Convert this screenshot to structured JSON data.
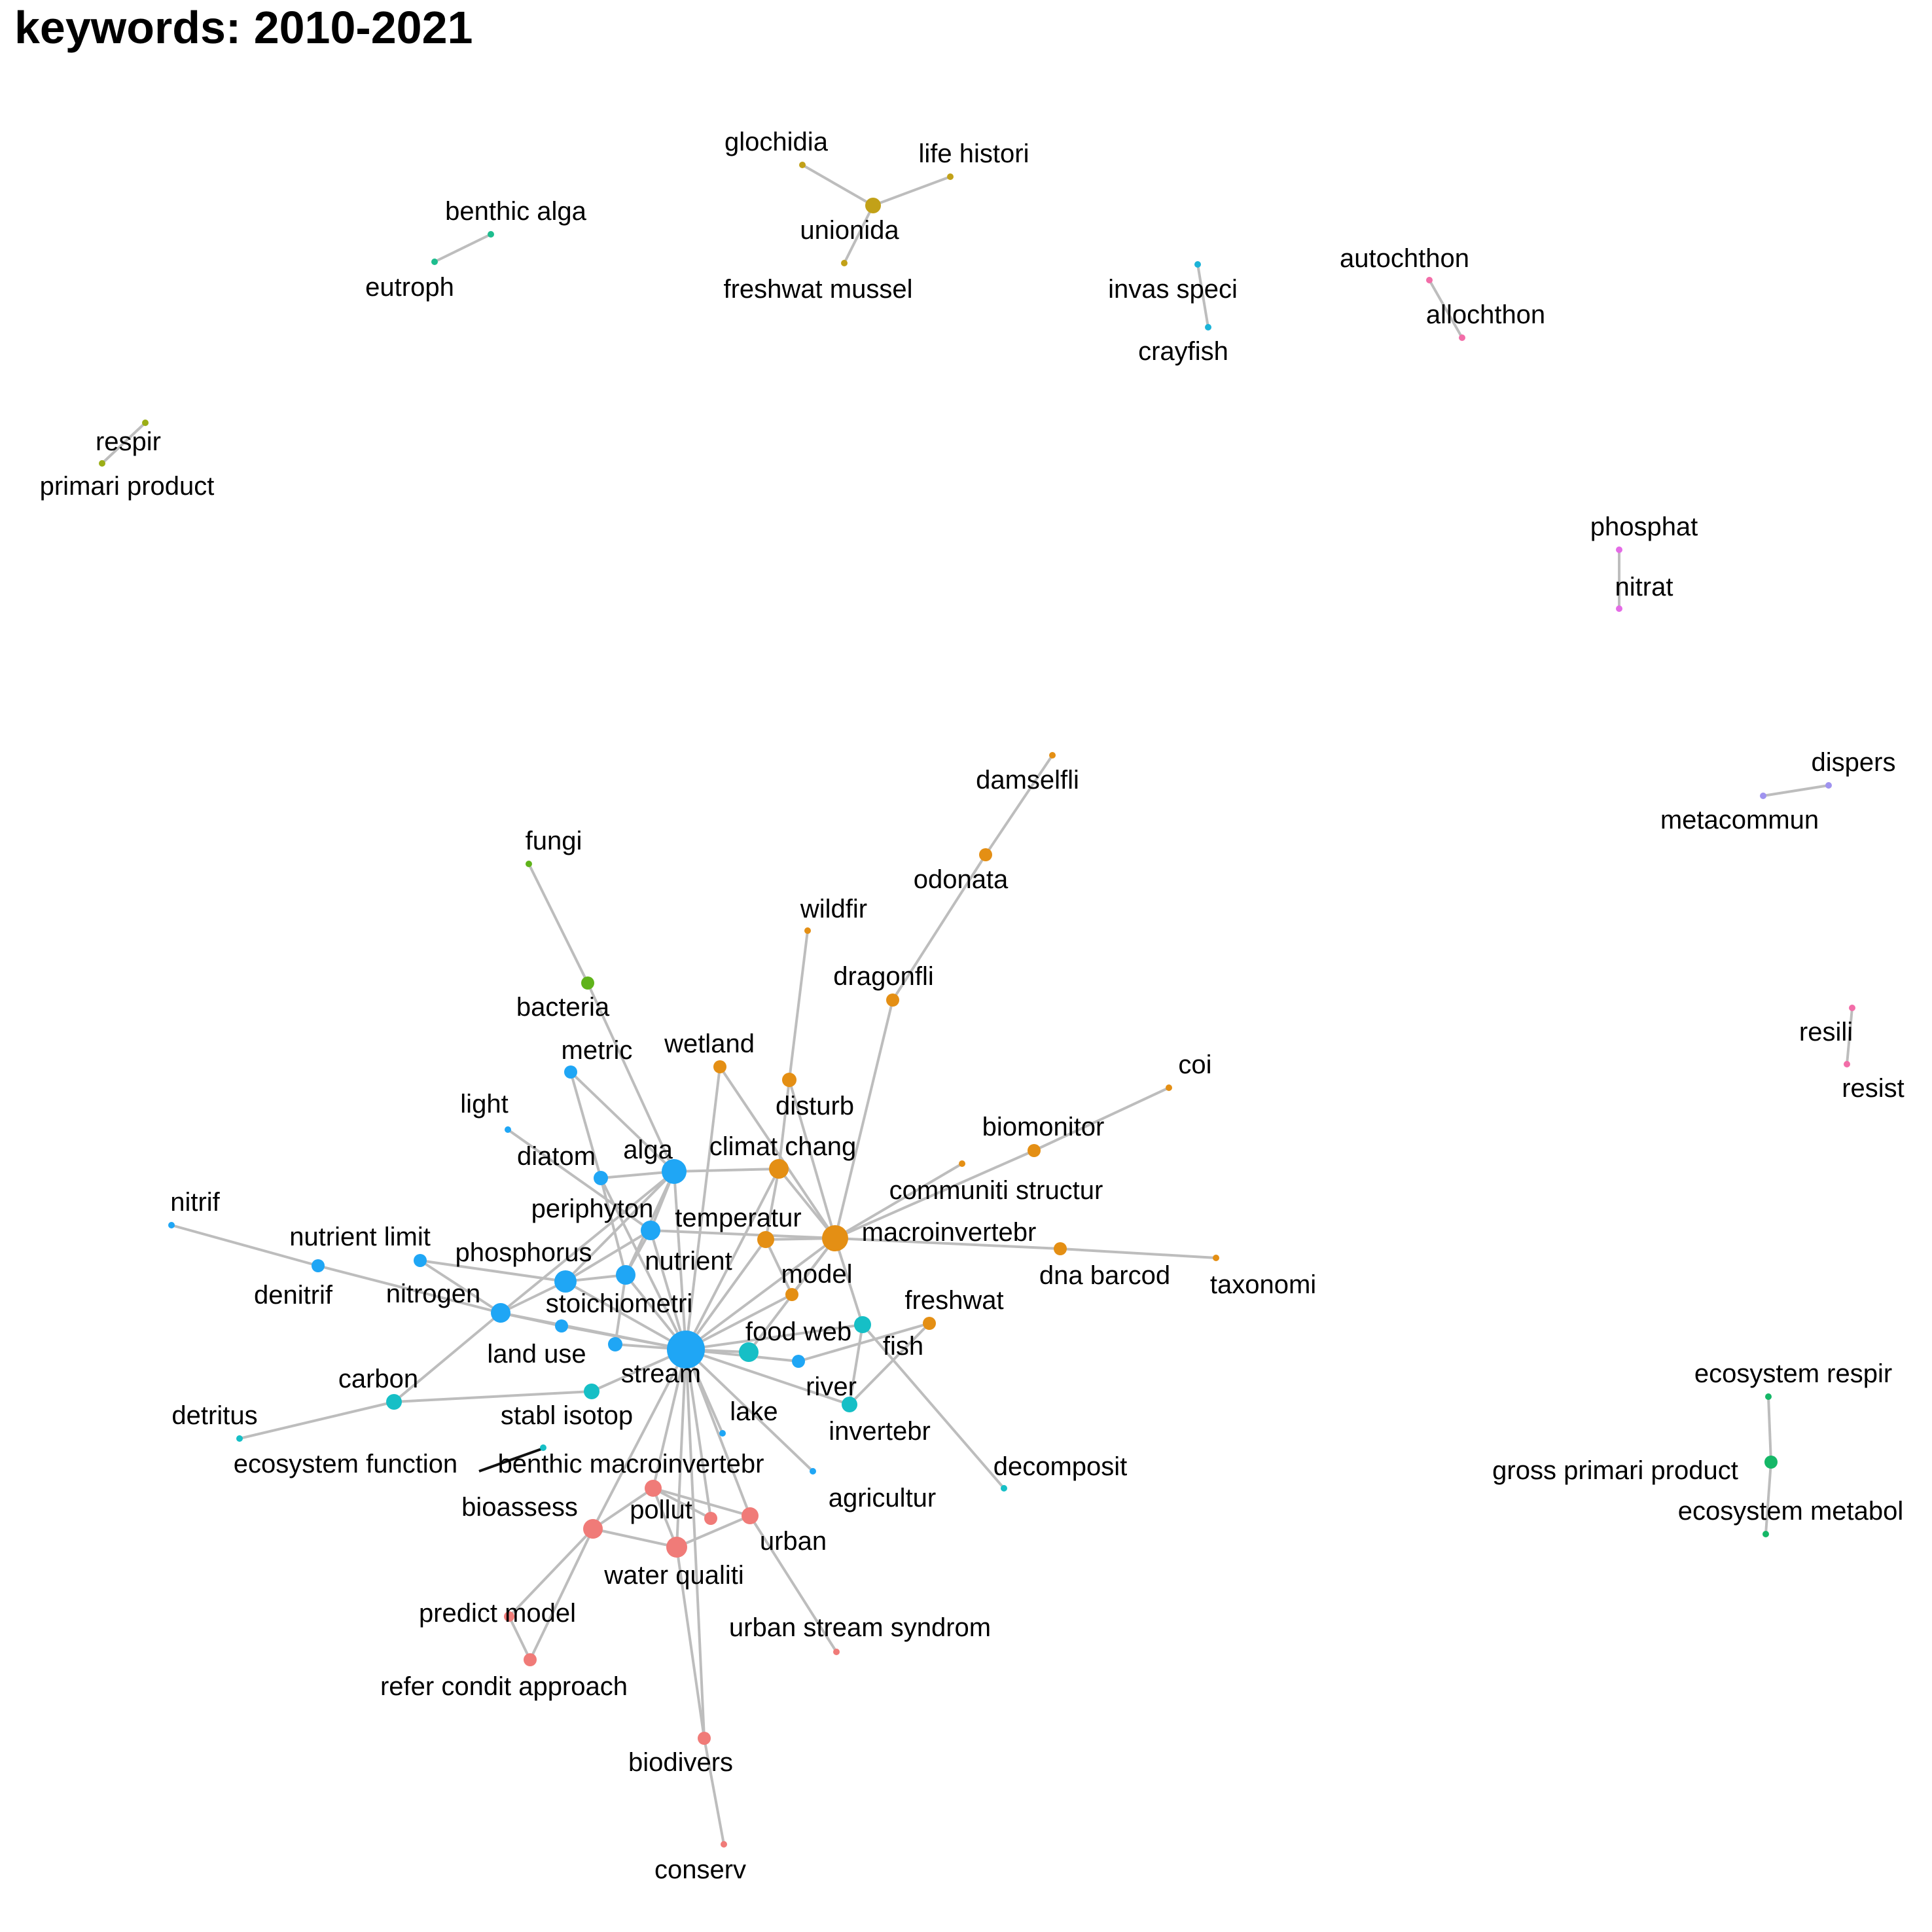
{
  "title": "keywords: 2010-2021",
  "colors": {
    "blue": "#1fa6f5",
    "orange": "#e48f14",
    "teal": "#16bfc6",
    "salmon": "#f07b78",
    "gold": "#c2a118",
    "green": "#5fb31a",
    "seagreen": "#1dbd8e",
    "olive": "#9bae16",
    "pink": "#f26da8",
    "magenta": "#e46be6",
    "lavender": "#9f93ef",
    "emerald": "#15b767",
    "cyan": "#1bb3d8"
  },
  "nodes": [
    {
      "id": "stream",
      "label": "stream",
      "color": "blue",
      "size": 29
    },
    {
      "id": "alga",
      "label": "alga",
      "color": "blue",
      "size": 19
    },
    {
      "id": "periphyton",
      "label": "periphyton",
      "color": "blue",
      "size": 15
    },
    {
      "id": "phosphorus",
      "label": "phosphorus",
      "color": "blue",
      "size": 17
    },
    {
      "id": "nutrient",
      "label": "nutrient",
      "color": "blue",
      "size": 15
    },
    {
      "id": "nitrogen",
      "label": "nitrogen",
      "color": "blue",
      "size": 15
    },
    {
      "id": "stoichiometri",
      "label": "stoichiometri",
      "color": "blue",
      "size": 11
    },
    {
      "id": "diatom",
      "label": "diatom",
      "color": "blue",
      "size": 11
    },
    {
      "id": "metric",
      "label": "metric",
      "color": "blue",
      "size": 10
    },
    {
      "id": "light",
      "label": "light",
      "color": "blue",
      "size": 5
    },
    {
      "id": "nutrient_limit",
      "label": "nutrient limit",
      "color": "blue",
      "size": 10
    },
    {
      "id": "denitrif",
      "label": "denitrif",
      "color": "blue",
      "size": 10
    },
    {
      "id": "nitrif",
      "label": "nitrif",
      "color": "blue",
      "size": 5
    },
    {
      "id": "land_use",
      "label": "land use",
      "color": "blue",
      "size": 10
    },
    {
      "id": "fish",
      "label": "fish",
      "color": "blue",
      "size": 10
    },
    {
      "id": "lake",
      "label": "lake",
      "color": "blue",
      "size": 5
    },
    {
      "id": "agricultur",
      "label": "agricultur",
      "color": "blue",
      "size": 5
    },
    {
      "id": "macroinvertebr",
      "label": "macroinvertebr",
      "color": "orange",
      "size": 20
    },
    {
      "id": "climat_chang",
      "label": "climat chang",
      "color": "orange",
      "size": 15
    },
    {
      "id": "temperatur",
      "label": "temperatur",
      "color": "orange",
      "size": 13
    },
    {
      "id": "disturb",
      "label": "disturb",
      "color": "orange",
      "size": 11
    },
    {
      "id": "wetland",
      "label": "wetland",
      "color": "orange",
      "size": 10
    },
    {
      "id": "wildfir",
      "label": "wildfir",
      "color": "orange",
      "size": 5
    },
    {
      "id": "dragonfli",
      "label": "dragonfli",
      "color": "orange",
      "size": 10
    },
    {
      "id": "odonata",
      "label": "odonata",
      "color": "orange",
      "size": 10
    },
    {
      "id": "damselfli",
      "label": "damselfli",
      "color": "orange",
      "size": 5
    },
    {
      "id": "biomonitor",
      "label": "biomonitor",
      "color": "orange",
      "size": 10
    },
    {
      "id": "coi",
      "label": "coi",
      "color": "orange",
      "size": 5
    },
    {
      "id": "communiti_structur",
      "label": "communiti structur",
      "color": "orange",
      "size": 5
    },
    {
      "id": "dna_barcod",
      "label": "dna barcod",
      "color": "orange",
      "size": 10
    },
    {
      "id": "taxonomi",
      "label": "taxonomi",
      "color": "orange",
      "size": 5
    },
    {
      "id": "model",
      "label": "model",
      "color": "orange",
      "size": 10
    },
    {
      "id": "freshwat",
      "label": "freshwat",
      "color": "orange",
      "size": 10
    },
    {
      "id": "food_web",
      "label": "food web",
      "color": "teal",
      "size": 15
    },
    {
      "id": "river",
      "label": "river",
      "color": "teal",
      "size": 12
    },
    {
      "id": "invertebr",
      "label": "invertebr",
      "color": "teal",
      "size": 13
    },
    {
      "id": "stabl_isotop",
      "label": "stabl isotop",
      "color": "teal",
      "size": 12
    },
    {
      "id": "carbon",
      "label": "carbon",
      "color": "teal",
      "size": 12
    },
    {
      "id": "detritus",
      "label": "detritus",
      "color": "teal",
      "size": 5
    },
    {
      "id": "ecosystem_function",
      "label": "ecosystem function",
      "color": "teal",
      "size": 5
    },
    {
      "id": "decomposit",
      "label": "decomposit",
      "color": "teal",
      "size": 5
    },
    {
      "id": "benthic_macroinvertebr",
      "label": "benthic macroinvertebr",
      "color": "salmon",
      "size": 13
    },
    {
      "id": "bioassess",
      "label": "bioassess",
      "color": "salmon",
      "size": 15
    },
    {
      "id": "pollut",
      "label": "pollut",
      "color": "salmon",
      "size": 10
    },
    {
      "id": "urban",
      "label": "urban",
      "color": "salmon",
      "size": 13
    },
    {
      "id": "water_qualiti",
      "label": "water qualiti",
      "color": "salmon",
      "size": 16
    },
    {
      "id": "predict_model",
      "label": "predict model",
      "color": "salmon",
      "size": 8
    },
    {
      "id": "refer_condit_approach",
      "label": "refer condit approach",
      "color": "salmon",
      "size": 10
    },
    {
      "id": "urban_stream_syndrom",
      "label": "urban stream syndrom",
      "color": "salmon",
      "size": 5
    },
    {
      "id": "biodivers",
      "label": "biodivers",
      "color": "salmon",
      "size": 10
    },
    {
      "id": "conserv",
      "label": "conserv",
      "color": "salmon",
      "size": 5
    },
    {
      "id": "bacteria",
      "label": "bacteria",
      "color": "green",
      "size": 10
    },
    {
      "id": "fungi",
      "label": "fungi",
      "color": "green",
      "size": 5
    },
    {
      "id": "unionida",
      "label": "unionida",
      "color": "gold",
      "size": 12
    },
    {
      "id": "glochidia",
      "label": "glochidia",
      "color": "gold",
      "size": 5
    },
    {
      "id": "life_histori",
      "label": "life histori",
      "color": "gold",
      "size": 5
    },
    {
      "id": "freshwat_mussel",
      "label": "freshwat mussel",
      "color": "gold",
      "size": 5
    },
    {
      "id": "benthic_alga",
      "label": "benthic alga",
      "color": "seagreen",
      "size": 5
    },
    {
      "id": "eutroph",
      "label": "eutroph",
      "color": "seagreen",
      "size": 5
    },
    {
      "id": "respir",
      "label": "respir",
      "color": "olive",
      "size": 5
    },
    {
      "id": "primari_product",
      "label": "primari product",
      "color": "olive",
      "size": 5
    },
    {
      "id": "invas_speci",
      "label": "invas speci",
      "color": "cyan",
      "size": 5
    },
    {
      "id": "crayfish",
      "label": "crayfish",
      "color": "cyan",
      "size": 5
    },
    {
      "id": "autochthon",
      "label": "autochthon",
      "color": "pink",
      "size": 5
    },
    {
      "id": "allochthon",
      "label": "allochthon",
      "color": "pink",
      "size": 5
    },
    {
      "id": "phosphat",
      "label": "phosphat",
      "color": "magenta",
      "size": 5
    },
    {
      "id": "nitrat",
      "label": "nitrat",
      "color": "magenta",
      "size": 5
    },
    {
      "id": "dispers",
      "label": "dispers",
      "color": "lavender",
      "size": 5
    },
    {
      "id": "metacommun",
      "label": "metacommun",
      "color": "lavender",
      "size": 5
    },
    {
      "id": "resili",
      "label": "resili",
      "color": "pink",
      "size": 5
    },
    {
      "id": "resist",
      "label": "resist",
      "color": "pink",
      "size": 5
    },
    {
      "id": "ecosystem_respir",
      "label": "ecosystem respir",
      "color": "emerald",
      "size": 5
    },
    {
      "id": "gross_primari_product",
      "label": "gross primari product",
      "color": "emerald",
      "size": 10
    },
    {
      "id": "ecosystem_metabol",
      "label": "ecosystem metabol",
      "color": "emerald",
      "size": 5
    }
  ],
  "edges": [
    [
      "stream",
      "alga"
    ],
    [
      "stream",
      "periphyton"
    ],
    [
      "stream",
      "phosphorus"
    ],
    [
      "stream",
      "nutrient"
    ],
    [
      "stream",
      "nitrogen"
    ],
    [
      "stream",
      "stoichiometri"
    ],
    [
      "stream",
      "land_use"
    ],
    [
      "stream",
      "diatom"
    ],
    [
      "stream",
      "macroinvertebr"
    ],
    [
      "stream",
      "climat_chang"
    ],
    [
      "stream",
      "temperatur"
    ],
    [
      "stream",
      "model"
    ],
    [
      "stream",
      "food_web"
    ],
    [
      "stream",
      "fish"
    ],
    [
      "stream",
      "river"
    ],
    [
      "stream",
      "invertebr"
    ],
    [
      "stream",
      "lake"
    ],
    [
      "stream",
      "agricultur"
    ],
    [
      "stream",
      "stabl_isotop"
    ],
    [
      "stream",
      "benthic_macroinvertebr"
    ],
    [
      "stream",
      "bioassess"
    ],
    [
      "stream",
      "water_qualiti"
    ],
    [
      "stream",
      "pollut"
    ],
    [
      "stream",
      "urban"
    ],
    [
      "stream",
      "biodivers"
    ],
    [
      "stream",
      "wetland"
    ],
    [
      "alga",
      "periphyton"
    ],
    [
      "alga",
      "phosphorus"
    ],
    [
      "alga",
      "nutrient"
    ],
    [
      "alga",
      "nitrogen"
    ],
    [
      "alga",
      "climat_chang"
    ],
    [
      "alga",
      "bacteria"
    ],
    [
      "alga",
      "diatom"
    ],
    [
      "alga",
      "metric"
    ],
    [
      "metric",
      "diatom"
    ],
    [
      "light",
      "periphyton"
    ],
    [
      "diatom",
      "nutrient"
    ],
    [
      "periphyton",
      "phosphorus"
    ],
    [
      "periphyton",
      "nutrient"
    ],
    [
      "periphyton",
      "macroinvertebr"
    ],
    [
      "phosphorus",
      "nutrient"
    ],
    [
      "phosphorus",
      "nitrogen"
    ],
    [
      "phosphorus",
      "nutrient_limit"
    ],
    [
      "nitrogen",
      "nutrient_limit"
    ],
    [
      "nitrogen",
      "denitrif"
    ],
    [
      "denitrif",
      "nitrif"
    ],
    [
      "nitrogen",
      "carbon"
    ],
    [
      "nitrogen",
      "land_use"
    ],
    [
      "nutrient",
      "stoichiometri"
    ],
    [
      "fungi",
      "bacteria"
    ],
    [
      "macroinvertebr",
      "climat_chang"
    ],
    [
      "macroinvertebr",
      "temperatur"
    ],
    [
      "macroinvertebr",
      "dragonfli"
    ],
    [
      "macroinvertebr",
      "biomonitor"
    ],
    [
      "macroinvertebr",
      "communiti_structur"
    ],
    [
      "macroinvertebr",
      "dna_barcod"
    ],
    [
      "macroinvertebr",
      "model"
    ],
    [
      "macroinvertebr",
      "food_web"
    ],
    [
      "macroinvertebr",
      "invertebr"
    ],
    [
      "macroinvertebr",
      "wetland"
    ],
    [
      "macroinvertebr",
      "disturb"
    ],
    [
      "dragonfli",
      "odonata"
    ],
    [
      "odonata",
      "damselfli"
    ],
    [
      "biomonitor",
      "coi"
    ],
    [
      "dna_barcod",
      "taxonomi"
    ],
    [
      "climat_chang",
      "disturb"
    ],
    [
      "climat_chang",
      "temperatur"
    ],
    [
      "disturb",
      "wildfir"
    ],
    [
      "temperatur",
      "model"
    ],
    [
      "fish",
      "freshwat"
    ],
    [
      "river",
      "freshwat"
    ],
    [
      "river",
      "invertebr"
    ],
    [
      "invertebr",
      "decomposit"
    ],
    [
      "stabl_isotop",
      "carbon"
    ],
    [
      "carbon",
      "detritus"
    ],
    [
      "benthic_macroinvertebr",
      "bioassess"
    ],
    [
      "benthic_macroinvertebr",
      "pollut"
    ],
    [
      "benthic_macroinvertebr",
      "urban"
    ],
    [
      "bioassess",
      "water_qualiti"
    ],
    [
      "bioassess",
      "predict_model"
    ],
    [
      "bioassess",
      "refer_condit_approach"
    ],
    [
      "predict_model",
      "refer_condit_approach"
    ],
    [
      "water_qualiti",
      "urban"
    ],
    [
      "water_qualiti",
      "biodivers"
    ],
    [
      "urban",
      "urban_stream_syndrom"
    ],
    [
      "biodivers",
      "conserv"
    ],
    [
      "benthic_macroinvertebr",
      "water_qualiti"
    ],
    [
      "unionida",
      "glochidia"
    ],
    [
      "unionida",
      "life_histori"
    ],
    [
      "unionida",
      "freshwat_mussel"
    ],
    [
      "benthic_alga",
      "eutroph"
    ],
    [
      "respir",
      "primari_product"
    ],
    [
      "invas_speci",
      "crayfish"
    ],
    [
      "autochthon",
      "allochthon"
    ],
    [
      "phosphat",
      "nitrat"
    ],
    [
      "dispers",
      "metacommun"
    ],
    [
      "resili",
      "resist"
    ],
    [
      "ecosystem_respir",
      "gross_primari_product"
    ],
    [
      "gross_primari_product",
      "ecosystem_metabol"
    ]
  ]
}
